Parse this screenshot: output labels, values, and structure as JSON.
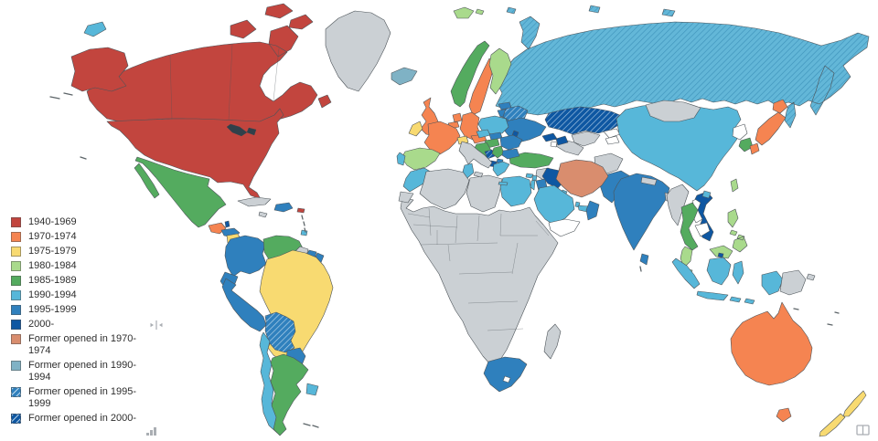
{
  "legend": {
    "items": [
      {
        "key": "1940-1969",
        "label": "1940-1969"
      },
      {
        "key": "1970-1974",
        "label": "1970-1974"
      },
      {
        "key": "1975-1979",
        "label": "1975-1979"
      },
      {
        "key": "1980-1984",
        "label": "1980-1984"
      },
      {
        "key": "1985-1989",
        "label": "1985-1989"
      },
      {
        "key": "1990-1994",
        "label": "1990-1994"
      },
      {
        "key": "1995-1999",
        "label": "1995-1999"
      },
      {
        "key": "2000-",
        "label": "2000-"
      },
      {
        "key": "former-1970-1974",
        "label": "Former opened in 1970-1974"
      },
      {
        "key": "former-1990-1994",
        "label": "Former opened in 1990-1994"
      },
      {
        "key": "former-1995-1999",
        "label": "Former opened in 1995-1999"
      },
      {
        "key": "former-2000-",
        "label": "Former opened in 2000-"
      }
    ]
  },
  "map": {
    "colors": {
      "sea": "#ffffff",
      "border": "#4d5459",
      "lake": "#31404a"
    },
    "palette": {
      "1940-1969": {
        "color": "#c2453e"
      },
      "1970-1974": {
        "color": "#f58451"
      },
      "1975-1979": {
        "color": "#f8da71"
      },
      "1980-1984": {
        "color": "#a9da8c"
      },
      "1985-1989": {
        "color": "#54ab5f"
      },
      "1990-1994": {
        "color": "#57b7d9"
      },
      "1995-1999": {
        "color": "#2f80bd"
      },
      "2000-": {
        "color": "#0e57a2"
      },
      "former-1970-1974": {
        "color": "#d98d6e"
      },
      "former-1990-1994": {
        "color": "#7fb2c5"
      },
      "former-1995-1999": {
        "color": "#2f80bd",
        "hatch": true,
        "line": "#b9d7ec"
      },
      "former-2000-": {
        "color": "#0e57a2",
        "hatch": true,
        "line": "#a9c8e4"
      },
      "russia-hatch": {
        "color": "#63b7d8",
        "hatch": true,
        "line": "#3e93bb"
      },
      "no-data": {
        "color": "#cbd0d4"
      },
      "none": {
        "color": "#ffffff"
      }
    },
    "countries": {
      "canada": "1940-1969",
      "usa": "1940-1969",
      "greenland": "no-data",
      "wrangel": "1990-1994",
      "mexico": "1985-1989",
      "guatemala": "1970-1974",
      "belize": "2000-",
      "honduras": "1995-1999",
      "nicaragua": "1975-1979",
      "costa-rica": "1970-1974",
      "panama": "1970-1974",
      "cuba": "no-data",
      "jamaica": "no-data",
      "hispaniola": "1995-1999",
      "puerto-rico": "1940-1969",
      "trinidad": "1990-1994",
      "colombia": "1995-1999",
      "venezuela": "1985-1989",
      "guyana": "no-data",
      "suriname": "1995-1999",
      "french-guiana": "1995-1999",
      "brazil": "1975-1979",
      "ecuador": "1995-1999",
      "peru": "1995-1999",
      "bolivia": "former-1995-1999",
      "paraguay": "1995-1999",
      "chile": "1990-1994",
      "argentina": "1985-1989",
      "uruguay": "1990-1994",
      "iceland": "former-1990-1994",
      "uk": "1970-1974",
      "ireland": "1975-1979",
      "norway": "1985-1989",
      "sweden": "1970-1974",
      "finland": "1980-1984",
      "denmark": "1985-1989",
      "baltics": "1995-1999",
      "poland": "1990-1994",
      "germany": "1970-1974",
      "benelux": "1970-1974",
      "france": "1970-1974",
      "spain": "1980-1984",
      "portugal": "1990-1994",
      "switzerland": "1975-1979",
      "austria": "1970-1974",
      "czechia": "1990-1994",
      "slovakia": "1995-1999",
      "hungary": "1985-1989",
      "croatia": "1985-1989",
      "bosnia": "former-2000-",
      "serbia": "1985-1989",
      "albania": "2000-",
      "north-macedonia": "1995-1999",
      "greece": "1990-1994",
      "romania": "1995-1999",
      "bulgaria": "1995-1999",
      "moldova": "2000-",
      "ukraine": "1995-1999",
      "belarus": "former-1995-1999",
      "russia": "russia-hatch",
      "kazakhstan": "former-2000-",
      "uzbekistan": "no-data",
      "turkmenistan": "no-data",
      "kyrgyz-tajik": "none",
      "caucasus": "2000-",
      "armenia": "none",
      "turkey": "1985-1989",
      "cyprus": "1990-1994",
      "syria": "no-data",
      "lebanon": "1990-1994",
      "israel": "1990-1994",
      "jordan": "1995-1999",
      "iraq": "2000-",
      "iran": "former-1970-1974",
      "kuwait": "1990-1994",
      "saudi-arabia": "1990-1994",
      "qatar": "1990-1994",
      "uae": "1990-1994",
      "oman": "1995-1999",
      "yemen": "none",
      "morocco": "1990-1994",
      "western-sahara": "no-data",
      "algeria": "no-data",
      "tunisia": "1990-1994",
      "libya": "no-data",
      "egypt": "1990-1994",
      "africa": "no-data",
      "south-africa": "1995-1999",
      "lesotho": "none",
      "madagascar": "no-data",
      "afghanistan": "no-data",
      "pakistan": "1995-1999",
      "india": "1995-1999",
      "sri-lanka": "1995-1999",
      "nepal": "no-data",
      "bangladesh": "no-data",
      "myanmar": "no-data",
      "thailand": "1985-1989",
      "laos": "none",
      "cambodia": "none",
      "vietnam": "2000-",
      "malaysia": "1980-1984",
      "brunei": "2000-",
      "singapore": "1980-1984",
      "indonesia": "1990-1994",
      "papua-new-guinea": "no-data",
      "philippines": "1980-1984",
      "china": "1990-1994",
      "mongolia": "no-data",
      "hainan": "1990-1994",
      "north-korea": "none",
      "south-korea": "1985-1989",
      "japan": "1970-1974",
      "taiwan": "1980-1984",
      "australia": "1970-1974",
      "tasmania": "1970-1974",
      "new-zealand": "1975-1979",
      "svalbard": "1980-1984"
    }
  },
  "ui": {
    "icons": [
      "resize-handle-icon",
      "chart-bars-icon",
      "table-view-icon"
    ]
  }
}
